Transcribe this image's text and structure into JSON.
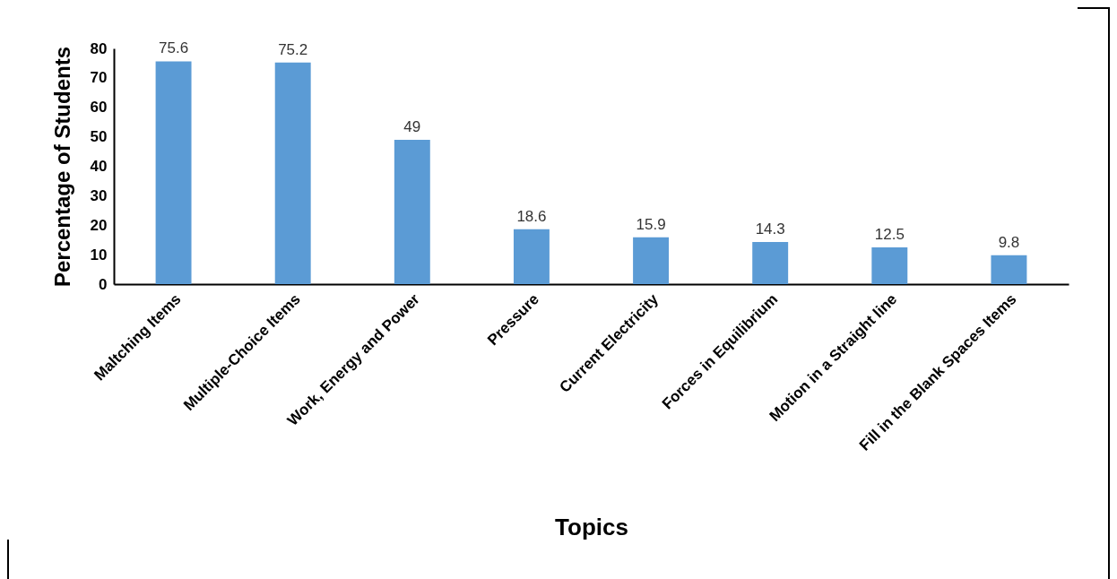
{
  "chart_data": {
    "type": "bar",
    "xlabel": "Topics",
    "ylabel": "Percentage of Students",
    "categories": [
      "Maltching Items",
      "Multiple-Choice Items",
      "Work, Energy and Power",
      "Pressure",
      "Current Electricity",
      "Forces in Equilibrium",
      "Motion in a Straight line",
      "Fill in the Blank Spaces Items"
    ],
    "values": [
      75.6,
      75.2,
      49,
      18.6,
      15.9,
      14.3,
      12.5,
      9.8
    ],
    "color": "#5b9bd5",
    "ylim": [
      0,
      80
    ],
    "yticks": [
      0,
      10,
      20,
      30,
      40,
      50,
      60,
      70,
      80
    ],
    "grid": false,
    "data_labels": true
  }
}
